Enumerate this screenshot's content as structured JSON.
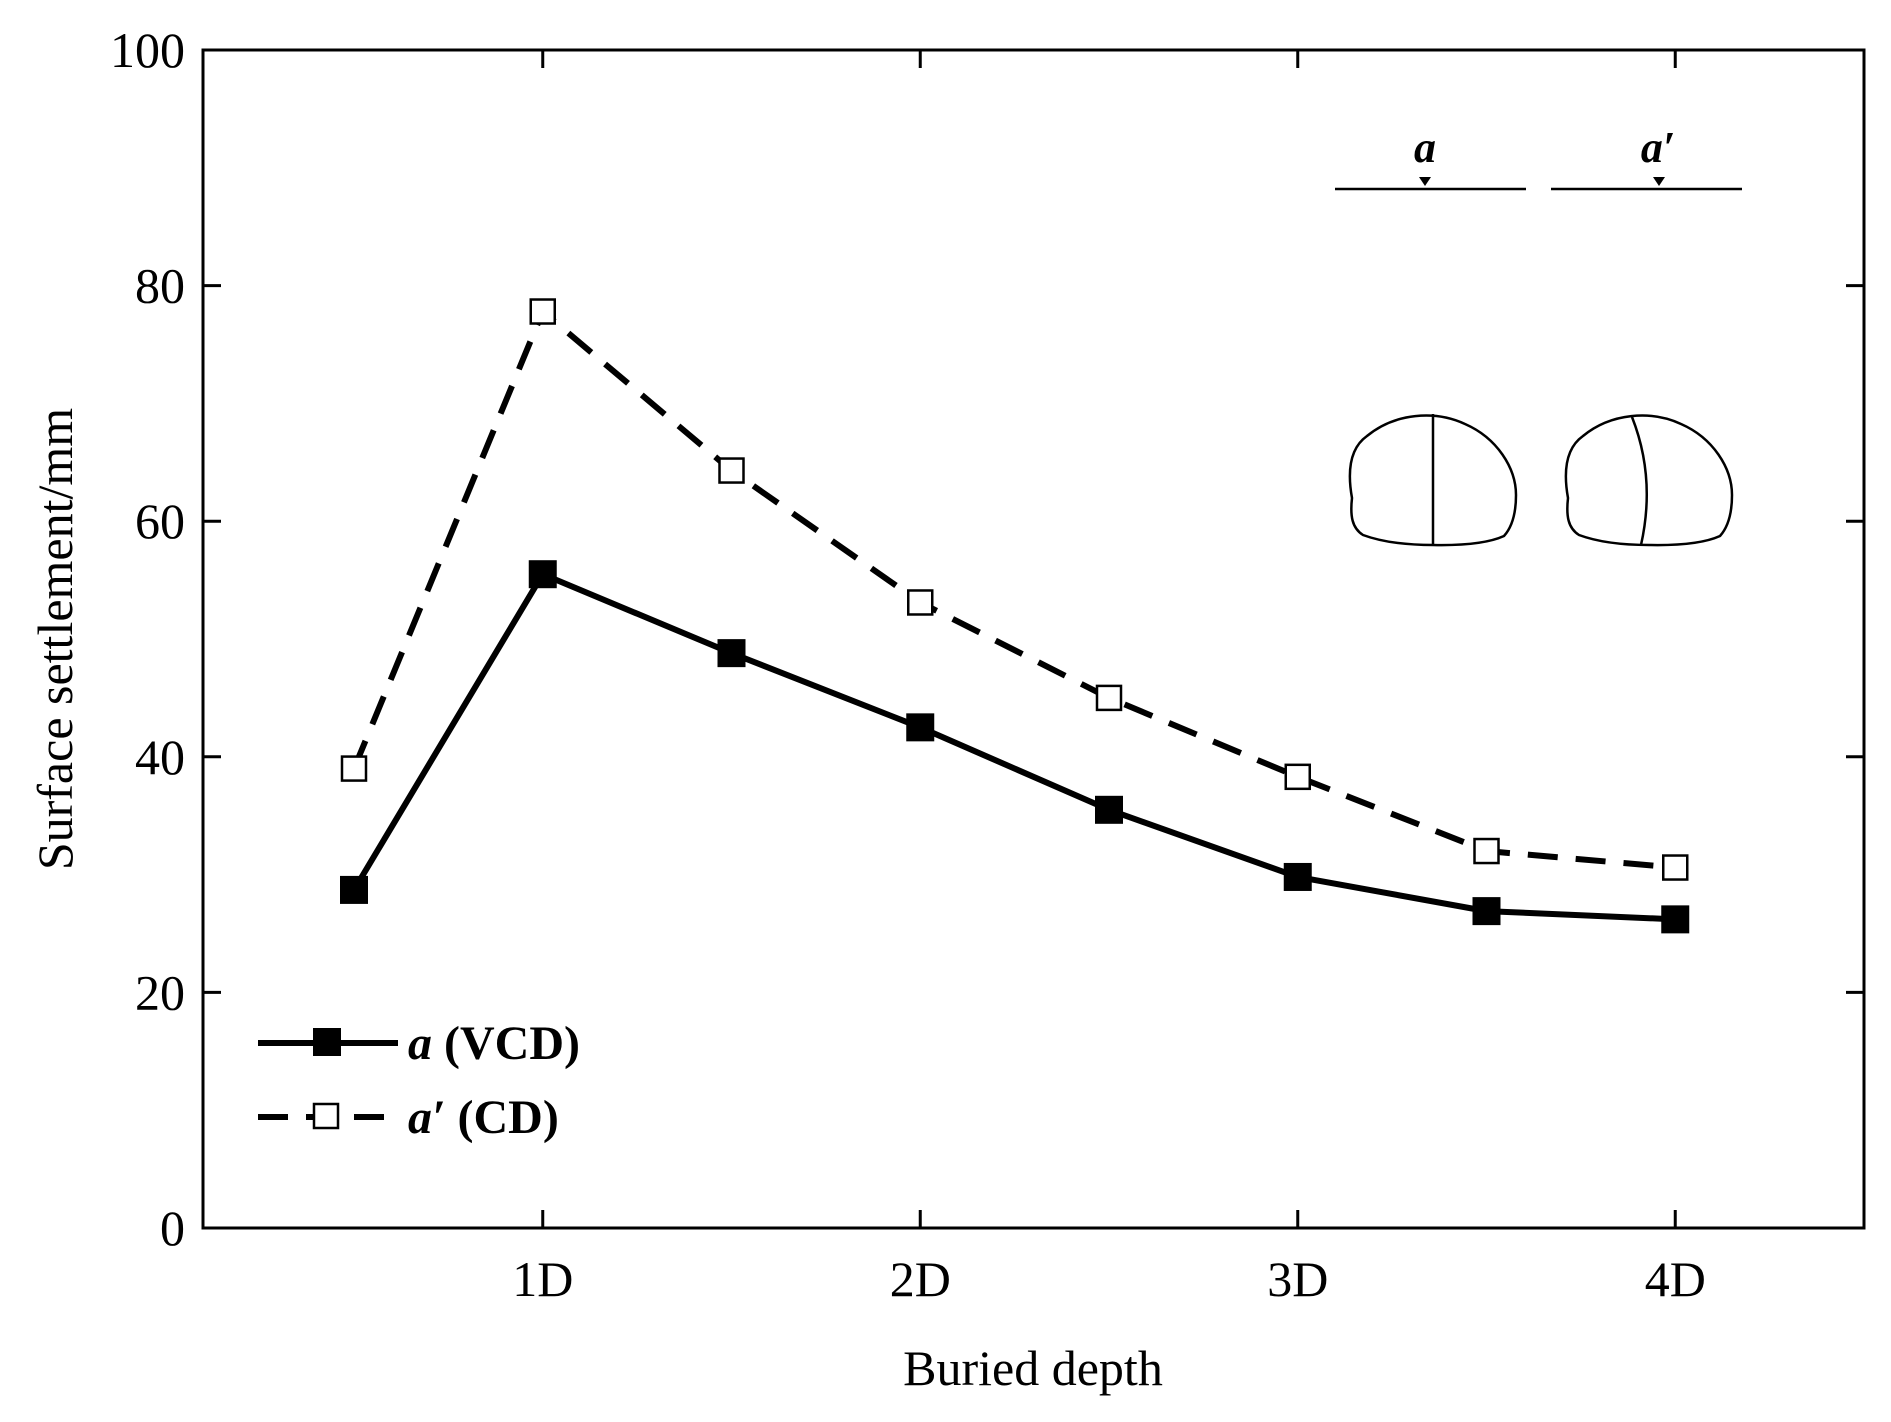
{
  "chart_data": {
    "type": "line",
    "xlabel": "Buried depth",
    "ylabel": "Surface settlement/mm",
    "x": [
      0.5,
      1,
      1.5,
      2,
      2.5,
      3,
      3.5,
      4
    ],
    "xlim": [
      0.1,
      4.5
    ],
    "ylim": [
      0,
      100
    ],
    "xticks": [
      {
        "value": 1,
        "label": "1D"
      },
      {
        "value": 2,
        "label": "2D"
      },
      {
        "value": 3,
        "label": "3D"
      },
      {
        "value": 4,
        "label": "4D"
      }
    ],
    "yticks": [
      0,
      20,
      40,
      60,
      80,
      100
    ],
    "series": [
      {
        "name": "a",
        "legend_label": "a (VCD)",
        "legend_italic": "a",
        "legend_suffix": " (VCD)",
        "marker": "filled-square",
        "line_style": "solid",
        "values": [
          28.7,
          55.5,
          48.8,
          42.5,
          35.5,
          29.8,
          26.9,
          26.2
        ]
      },
      {
        "name": "a'",
        "legend_label": "a′ (CD)",
        "legend_italic": "a′",
        "legend_suffix": " (CD)",
        "marker": "open-square",
        "line_style": "dashed",
        "values": [
          39.0,
          77.8,
          64.3,
          53.1,
          45.0,
          38.3,
          32.0,
          30.6
        ]
      }
    ],
    "legend_position": "bottom-left",
    "inset": {
      "labels": [
        "a",
        "a′"
      ],
      "description": "tunnel cross sections: vertical partition (a) and curved partition (a′)"
    }
  },
  "colors": {
    "line": "#000000",
    "background": "#ffffff"
  }
}
